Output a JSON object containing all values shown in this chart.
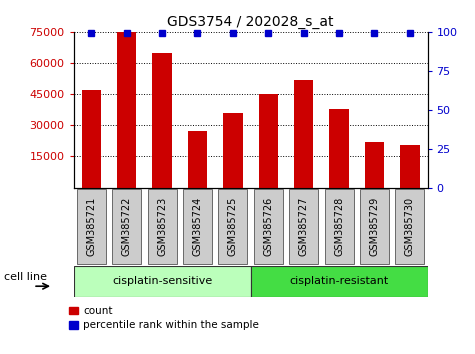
{
  "title": "GDS3754 / 202028_s_at",
  "samples": [
    "GSM385721",
    "GSM385722",
    "GSM385723",
    "GSM385724",
    "GSM385725",
    "GSM385726",
    "GSM385727",
    "GSM385728",
    "GSM385729",
    "GSM385730"
  ],
  "counts": [
    47000,
    75000,
    65000,
    27500,
    36000,
    45000,
    52000,
    38000,
    22000,
    20500
  ],
  "bar_color": "#cc0000",
  "dot_color": "#0000cc",
  "ylim_left": [
    0,
    75000
  ],
  "ylim_right": [
    0,
    100
  ],
  "yticks_left": [
    15000,
    30000,
    45000,
    60000,
    75000
  ],
  "yticks_right": [
    0,
    25,
    50,
    75,
    100
  ],
  "groups": [
    {
      "label": "cisplatin-sensitive",
      "start": 0,
      "end": 5,
      "color": "#bbffbb"
    },
    {
      "label": "cisplatin-resistant",
      "start": 5,
      "end": 10,
      "color": "#44dd44"
    }
  ],
  "group_label": "cell line",
  "legend_count_label": "count",
  "legend_pct_label": "percentile rank within the sample",
  "title_fontsize": 10,
  "tick_label_fontsize": 7,
  "axis_tick_color_left": "#cc0000",
  "axis_tick_color_right": "#0000cc",
  "grid_color": "#000000",
  "background_color": "#ffffff",
  "xticklabel_bg": "#cccccc",
  "bar_width": 0.55
}
